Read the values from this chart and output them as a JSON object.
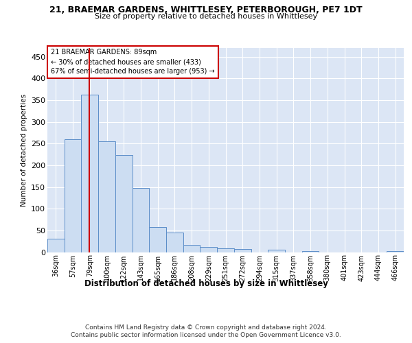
{
  "title_line1": "21, BRAEMAR GARDENS, WHITTLESEY, PETERBOROUGH, PE7 1DT",
  "title_line2": "Size of property relative to detached houses in Whittlesey",
  "xlabel": "Distribution of detached houses by size in Whittlesey",
  "ylabel": "Number of detached properties",
  "categories": [
    "36sqm",
    "57sqm",
    "79sqm",
    "100sqm",
    "122sqm",
    "143sqm",
    "165sqm",
    "186sqm",
    "208sqm",
    "229sqm",
    "251sqm",
    "272sqm",
    "294sqm",
    "315sqm",
    "337sqm",
    "358sqm",
    "380sqm",
    "401sqm",
    "423sqm",
    "444sqm",
    "466sqm"
  ],
  "values": [
    31,
    260,
    362,
    255,
    223,
    147,
    57,
    45,
    17,
    12,
    9,
    7,
    0,
    5,
    0,
    2,
    0,
    0,
    0,
    0,
    3
  ],
  "bar_color": "#ccddf2",
  "bar_edge_color": "#5b8dc8",
  "vline_color": "#cc0000",
  "annotation_line1": "21 BRAEMAR GARDENS: 89sqm",
  "annotation_line2": "← 30% of detached houses are smaller (433)",
  "annotation_line3": "67% of semi-detached houses are larger (953) →",
  "annotation_box_edge": "#cc0000",
  "ylim_max": 470,
  "yticks": [
    0,
    50,
    100,
    150,
    200,
    250,
    300,
    350,
    400,
    450
  ],
  "bg_color": "#dce6f5",
  "footer_line1": "Contains HM Land Registry data © Crown copyright and database right 2024.",
  "footer_line2": "Contains public sector information licensed under the Open Government Licence v3.0."
}
